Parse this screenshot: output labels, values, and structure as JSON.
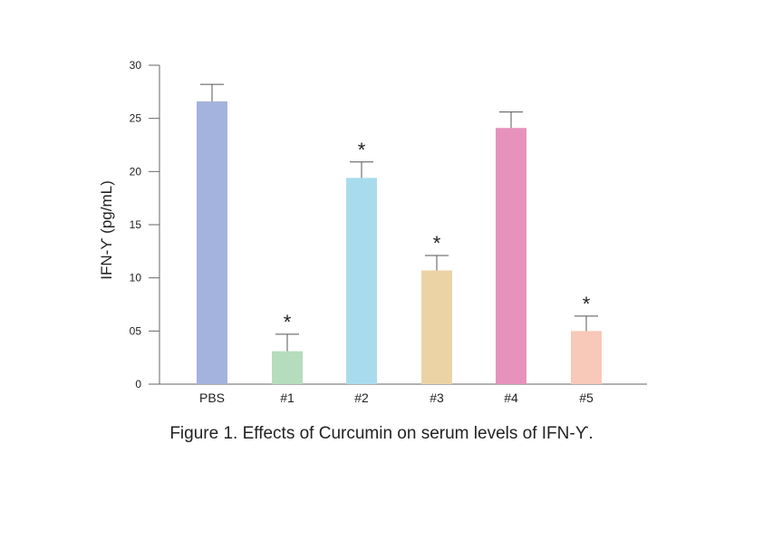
{
  "chart_data": {
    "type": "bar",
    "ylabel": "IFN-ϒ  (pg/mL)",
    "xlabel": "",
    "ylim": [
      0,
      30
    ],
    "yticks": [
      0,
      5,
      10,
      15,
      20,
      25,
      30
    ],
    "ytick_labels": [
      "0",
      "05",
      "10",
      "15",
      "20",
      "25",
      "30"
    ],
    "categories": [
      "PBS",
      "#1",
      "#2",
      "#3",
      "#4",
      "#5"
    ],
    "values": [
      26.6,
      3.1,
      19.4,
      10.7,
      24.1,
      5.0
    ],
    "errors": [
      1.6,
      1.6,
      1.5,
      1.4,
      1.5,
      1.4
    ],
    "significant": [
      false,
      true,
      true,
      true,
      false,
      true
    ],
    "significance_marker": "*",
    "colors": [
      "#a4b3dd",
      "#b5dcbd",
      "#a8dced",
      "#ecd3a6",
      "#e692bd",
      "#f8c8b8"
    ],
    "grid": false,
    "caption": "Figure 1. Effects of Curcumin on serum levels of IFN-ϒ."
  }
}
